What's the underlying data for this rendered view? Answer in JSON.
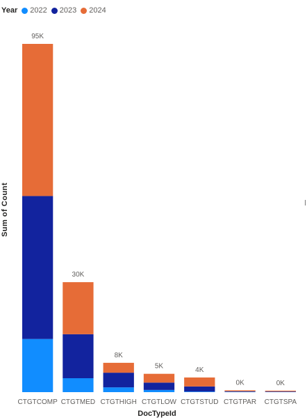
{
  "legend": {
    "title": "Year",
    "items": [
      {
        "label": "2022",
        "color": "#118dff"
      },
      {
        "label": "2023",
        "color": "#12239e"
      },
      {
        "label": "2024",
        "color": "#e66c37"
      }
    ]
  },
  "chart_data": {
    "type": "bar",
    "stacked": true,
    "title": "",
    "xlabel": "DocTypeId",
    "ylabel": "Sum of Count",
    "categories": [
      "CTGTCOMP",
      "CTGTMED",
      "CTGTHIGH",
      "CTGTLOW",
      "CTGTSTUD",
      "CTGTPAR",
      "CTGTSPA"
    ],
    "series": [
      {
        "name": "2022",
        "color": "#118dff",
        "values": [
          14500,
          3800,
          1300,
          600,
          150,
          80,
          60
        ]
      },
      {
        "name": "2023",
        "color": "#12239e",
        "values": [
          39000,
          12000,
          4000,
          2000,
          1400,
          150,
          120
        ]
      },
      {
        "name": "2024",
        "color": "#e66c37",
        "values": [
          41500,
          14200,
          2700,
          2400,
          2450,
          270,
          220
        ]
      }
    ],
    "data_labels": [
      "95K",
      "30K",
      "8K",
      "5K",
      "4K",
      "0K",
      "0K"
    ],
    "ylim": [
      0,
      95000
    ],
    "grid": false,
    "legend_position": "top-left"
  }
}
